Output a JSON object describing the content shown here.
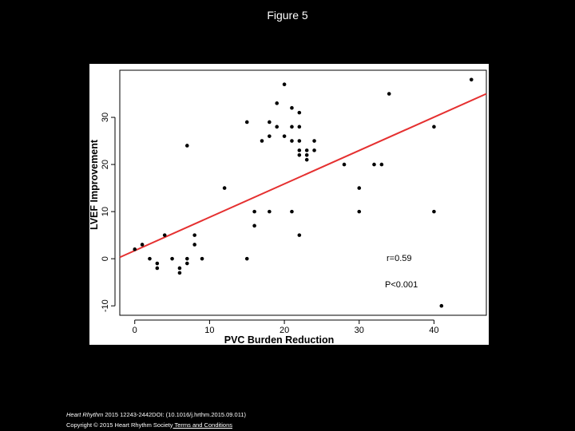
{
  "slide": {
    "title": "Figure 5"
  },
  "footer": {
    "journal": "Heart Rhythm",
    "citation": " 2015 12243-2442DOI: (10.1016/j.hrthm.2015.09.011)",
    "copyright": "Copyright © 2015 Heart Rhythm Society",
    "terms_link": " Terms and Conditions"
  },
  "chart_data": {
    "type": "scatter",
    "title": "",
    "xlabel": "PVC Burden Reduction",
    "ylabel": "LVEF Improvement",
    "xlim": [
      -2,
      47
    ],
    "ylim": [
      -12,
      40
    ],
    "xticks": [
      0,
      10,
      20,
      30,
      40
    ],
    "yticks": [
      -10,
      0,
      10,
      20,
      30
    ],
    "grid": false,
    "point_color": "#000000",
    "line_color": "#e53030",
    "regression_line": {
      "x": [
        -2,
        47
      ],
      "y": [
        0.3,
        35.0
      ]
    },
    "annotations": [
      "r=0.59",
      "P<0.001"
    ],
    "points": [
      [
        0,
        2
      ],
      [
        1,
        3
      ],
      [
        2,
        0
      ],
      [
        3,
        -1
      ],
      [
        3,
        -2
      ],
      [
        4,
        5
      ],
      [
        5,
        0
      ],
      [
        6,
        -2
      ],
      [
        6,
        -3
      ],
      [
        7,
        0
      ],
      [
        7,
        -1
      ],
      [
        7,
        24
      ],
      [
        8,
        5
      ],
      [
        8,
        3
      ],
      [
        9,
        0
      ],
      [
        12,
        15
      ],
      [
        15,
        0
      ],
      [
        15,
        29
      ],
      [
        16,
        10
      ],
      [
        16,
        7
      ],
      [
        17,
        25
      ],
      [
        18,
        29
      ],
      [
        18,
        26
      ],
      [
        18,
        10
      ],
      [
        19,
        33
      ],
      [
        19,
        28
      ],
      [
        20,
        37
      ],
      [
        20,
        26
      ],
      [
        21,
        32
      ],
      [
        21,
        28
      ],
      [
        21,
        25
      ],
      [
        21,
        10
      ],
      [
        22,
        31
      ],
      [
        22,
        28
      ],
      [
        22,
        25
      ],
      [
        22,
        23
      ],
      [
        22,
        22
      ],
      [
        22,
        5
      ],
      [
        23,
        23
      ],
      [
        23,
        22
      ],
      [
        23,
        21
      ],
      [
        24,
        25
      ],
      [
        24,
        23
      ],
      [
        28,
        20
      ],
      [
        30,
        15
      ],
      [
        30,
        10
      ],
      [
        32,
        20
      ],
      [
        33,
        20
      ],
      [
        34,
        35
      ],
      [
        40,
        28
      ],
      [
        40,
        10
      ],
      [
        41,
        -10
      ],
      [
        45,
        38
      ]
    ]
  }
}
